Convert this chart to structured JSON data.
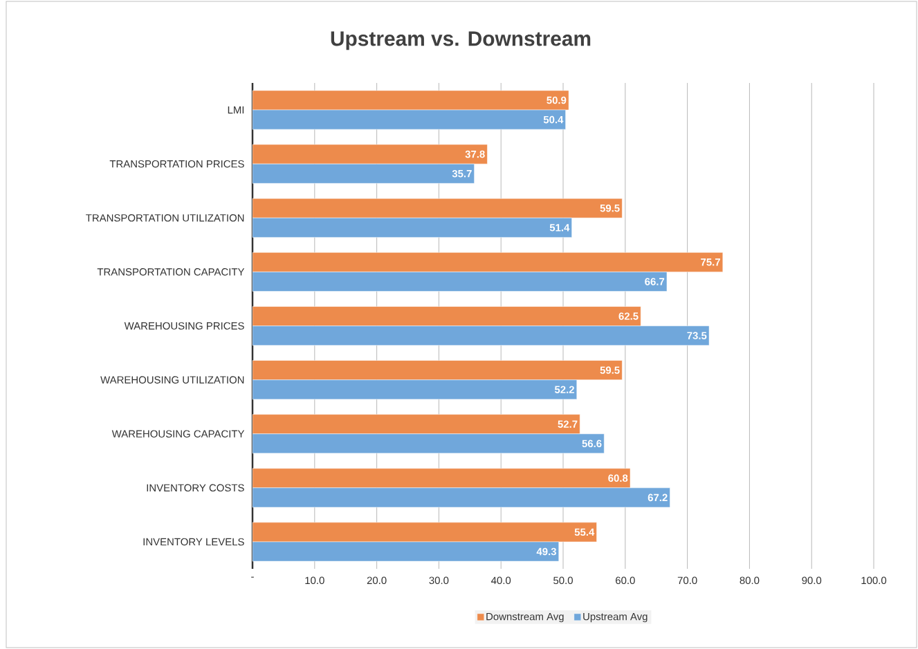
{
  "chart_data": {
    "type": "bar",
    "orientation": "horizontal",
    "title": "Upstream vs. Downstream",
    "categories": [
      "LMI",
      "TRANSPORTATION PRICES",
      "TRANSPORTATION UTILIZATION",
      "TRANSPORTATION CAPACITY",
      "WAREHOUSING PRICES",
      "WAREHOUSING UTILIZATION",
      "WAREHOUSING CAPACITY",
      "INVENTORY COSTS",
      "INVENTORY LEVELS"
    ],
    "series": [
      {
        "name": "Downstream Avg",
        "color": "#ed8b4c",
        "values": [
          50.9,
          37.8,
          59.5,
          75.7,
          62.5,
          59.5,
          52.7,
          60.8,
          55.4
        ]
      },
      {
        "name": "Upstream Avg",
        "color": "#70a7db",
        "values": [
          50.4,
          35.7,
          51.4,
          66.7,
          73.5,
          52.2,
          56.6,
          67.2,
          49.3
        ]
      }
    ],
    "xlim": [
      0,
      100
    ],
    "xticks": [
      {
        "value": 0,
        "label": "-"
      },
      {
        "value": 10,
        "label": "10.0"
      },
      {
        "value": 20,
        "label": "20.0"
      },
      {
        "value": 30,
        "label": "30.0"
      },
      {
        "value": 40,
        "label": "40.0"
      },
      {
        "value": 50,
        "label": "50.0"
      },
      {
        "value": 60,
        "label": "60.0"
      },
      {
        "value": 70,
        "label": "70.0"
      },
      {
        "value": 80,
        "label": "80.0"
      },
      {
        "value": 90,
        "label": "90.0"
      },
      {
        "value": 100,
        "label": "100.0"
      }
    ],
    "grid": "x",
    "legend": "bottom",
    "data_labels": true
  }
}
